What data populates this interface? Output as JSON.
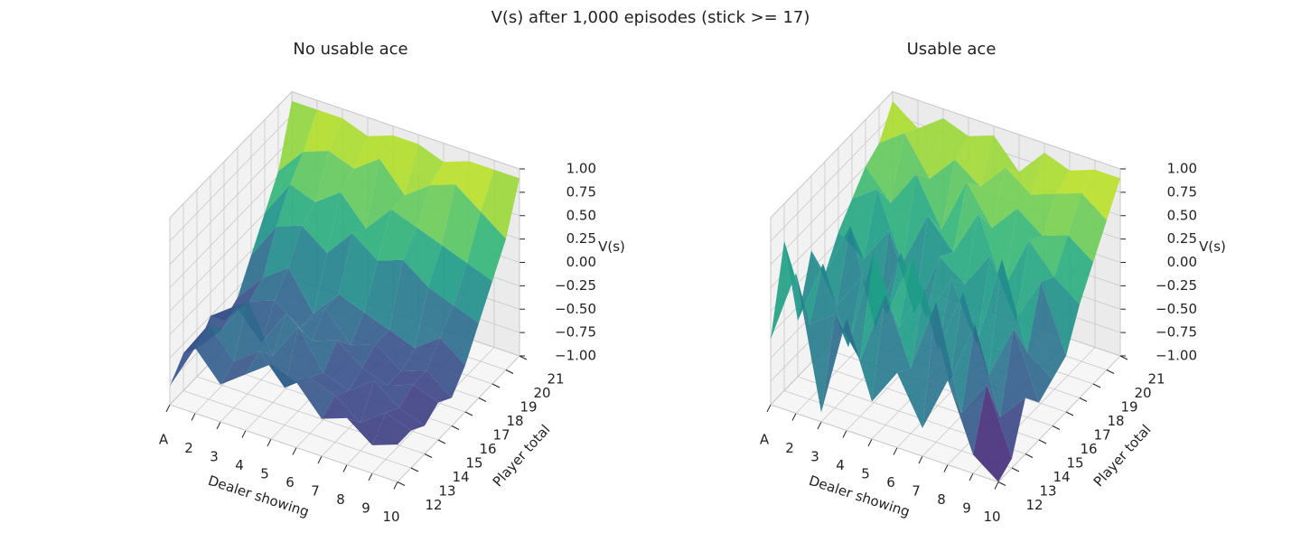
{
  "title": "V(s) after 1,000 episodes (stick >= 17)",
  "chart_data": [
    {
      "type": "surface",
      "title": "No usable ace",
      "x_label": "Dealer showing",
      "y_label": "Player total",
      "z_label": "V(s)",
      "colormap": "viridis",
      "grid": true,
      "x_categories": [
        "A",
        "2",
        "3",
        "4",
        "5",
        "6",
        "7",
        "8",
        "9",
        "10"
      ],
      "y_categories": [
        12,
        13,
        14,
        15,
        16,
        17,
        18,
        19,
        20,
        21
      ],
      "zlim": [
        -1,
        1
      ],
      "zticks": [
        {
          "value": -1,
          "label": "−1.00"
        },
        {
          "value": -0.75,
          "label": "−0.75"
        },
        {
          "value": -0.5,
          "label": "−0.50"
        },
        {
          "value": -0.25,
          "label": "−0.25"
        },
        {
          "value": 0,
          "label": "0.00"
        },
        0.25,
        {
          "value": 0.5,
          "label": "0.50"
        },
        0.75,
        {
          "value": 1,
          "label": "1.00"
        }
      ],
      "values": [
        [
          -0.8,
          -0.3,
          -0.6,
          -0.4,
          -0.2,
          -0.3,
          -0.6,
          -0.5,
          -0.7,
          -0.6
        ],
        [
          -0.6,
          -0.2,
          -0.5,
          -0.3,
          -0.6,
          -0.4,
          -0.5,
          -0.7,
          -0.5,
          -0.6
        ],
        [
          -0.7,
          -0.4,
          0.0,
          -0.5,
          -0.1,
          -0.5,
          -0.6,
          -0.4,
          -0.6,
          -0.7
        ],
        [
          -0.5,
          -0.3,
          -0.6,
          -0.2,
          -0.4,
          -0.3,
          -0.5,
          -0.6,
          -0.5,
          -0.6
        ],
        [
          -0.7,
          -0.4,
          -0.3,
          -0.5,
          -0.2,
          -0.5,
          -0.4,
          -0.6,
          -0.5,
          -0.7
        ],
        [
          -0.6,
          -0.3,
          -0.1,
          -0.5,
          -0.2,
          -0.3,
          -0.4,
          -0.5,
          -0.3,
          -0.5
        ],
        [
          -0.3,
          0.1,
          0.2,
          0.0,
          0.3,
          0.1,
          0.2,
          0.0,
          -0.1,
          -0.2
        ],
        [
          0.0,
          0.4,
          0.3,
          0.5,
          0.2,
          0.5,
          0.4,
          0.3,
          0.2,
          0.1
        ],
        [
          0.3,
          0.6,
          0.7,
          0.6,
          0.8,
          0.5,
          0.7,
          0.8,
          0.6,
          0.4
        ],
        [
          0.9,
          0.9,
          0.9,
          0.8,
          0.9,
          0.9,
          0.8,
          0.9,
          0.9,
          0.9
        ]
      ]
    },
    {
      "type": "surface",
      "title": "Usable ace",
      "x_label": "Dealer showing",
      "y_label": "Player total",
      "z_label": "V(s)",
      "colormap": "viridis",
      "grid": true,
      "x_categories": [
        "A",
        "2",
        "3",
        "4",
        "5",
        "6",
        "7",
        "8",
        "9",
        "10"
      ],
      "y_categories": [
        12,
        13,
        14,
        15,
        16,
        17,
        18,
        19,
        20,
        21
      ],
      "zlim": [
        -1,
        1
      ],
      "zticks": [
        {
          "value": -1,
          "label": "−1.00"
        },
        {
          "value": -0.75,
          "label": "−0.75"
        },
        {
          "value": -0.5,
          "label": "−0.50"
        },
        {
          "value": -0.25,
          "label": "−0.25"
        },
        {
          "value": 0,
          "label": "0.00"
        },
        0.25,
        {
          "value": 0.5,
          "label": "0.50"
        },
        0.75,
        {
          "value": 1,
          "label": "1.00"
        }
      ],
      "values": [
        [
          -0.3,
          0.5,
          -0.9,
          0.2,
          -0.6,
          -0.2,
          -0.7,
          -0.1,
          -0.8,
          -1.0
        ],
        [
          0.6,
          -0.2,
          0.0,
          -0.4,
          0.4,
          -0.3,
          0.5,
          -0.6,
          -0.2,
          -0.9
        ],
        [
          -0.4,
          0.3,
          -0.5,
          0.6,
          -0.1,
          0.4,
          -0.5,
          0.2,
          -0.7,
          -0.4
        ],
        [
          0.2,
          -0.3,
          0.1,
          -0.2,
          0.5,
          -0.4,
          0.3,
          -0.5,
          0.1,
          -0.6
        ],
        [
          -0.2,
          0.4,
          -0.6,
          0.3,
          -0.3,
          0.2,
          -0.4,
          0.6,
          -0.3,
          -0.5
        ],
        [
          0.1,
          -0.1,
          0.3,
          -0.5,
          0.2,
          0.0,
          0.4,
          -0.2,
          0.3,
          -0.4
        ],
        [
          0.3,
          0.5,
          -0.2,
          0.4,
          0.1,
          0.6,
          -0.1,
          0.5,
          0.2,
          0.0
        ],
        [
          0.5,
          0.2,
          0.6,
          0.1,
          0.7,
          0.3,
          0.6,
          0.4,
          0.5,
          0.3
        ],
        [
          0.6,
          0.8,
          0.4,
          0.7,
          0.5,
          0.8,
          0.6,
          0.7,
          0.8,
          0.6
        ],
        [
          0.9,
          0.7,
          0.9,
          0.8,
          0.9,
          0.6,
          0.9,
          0.8,
          0.9,
          0.9
        ]
      ]
    }
  ]
}
